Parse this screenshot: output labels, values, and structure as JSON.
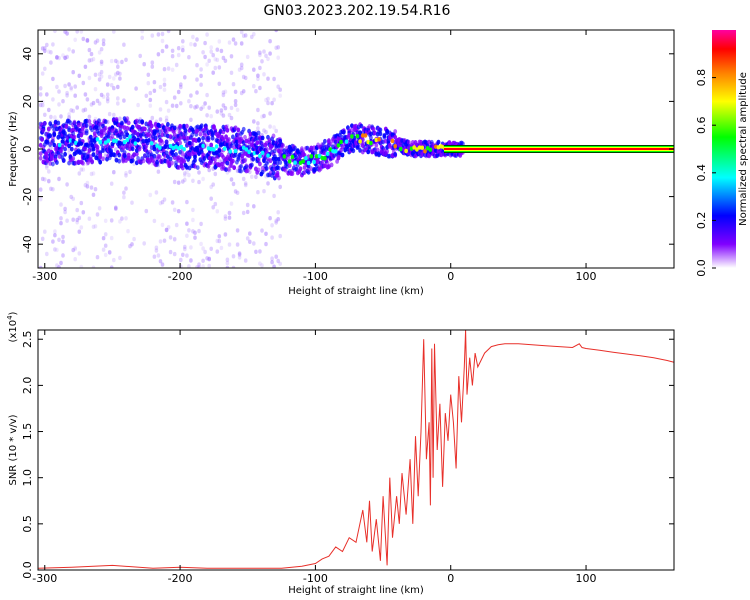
{
  "title": "GN03.2023.202.19.54.R16",
  "chart_data": [
    {
      "type": "heatmap",
      "xlabel": "Height of straight line (km)",
      "ylabel": "Frequency (Hz)",
      "xlim": [
        -305,
        165
      ],
      "ylim": [
        -50,
        50
      ],
      "xticks": [
        -300,
        -200,
        -100,
        0,
        100
      ],
      "yticks": [
        -40,
        -20,
        0,
        20,
        40
      ],
      "colorbar": {
        "label": "Normalized spectral amplitude",
        "range": [
          0.0,
          1.0
        ],
        "ticks": [
          "0.0",
          "0.2",
          "0.4",
          "0.6",
          "0.8"
        ],
        "colors": [
          "#ffffff",
          "#8000ff",
          "#0000ff",
          "#00ffff",
          "#00ff00",
          "#ffff00",
          "#ff8000",
          "#ff0000",
          "#ff00a0"
        ]
      },
      "ridge_x": [
        -305,
        -280,
        -260,
        -240,
        -220,
        -200,
        -180,
        -160,
        -140,
        -125,
        -110,
        -100,
        -90,
        -80,
        -70,
        -60,
        -50,
        -40,
        -30,
        -20,
        -10,
        0,
        20,
        50,
        100,
        165
      ],
      "ridge_frequency": [
        2,
        3,
        3,
        4,
        2,
        1,
        1,
        0,
        -2,
        -4,
        -5,
        -4,
        -2,
        2,
        5,
        4,
        3,
        2,
        0,
        0,
        0,
        0,
        0,
        0,
        0,
        0
      ],
      "constant_line_frequency": 0,
      "constant_line_start_x": -5
    },
    {
      "type": "line",
      "xlabel": "Height of straight line (km)",
      "ylabel": "SNR (10 * v/v)",
      "yscale_label": "(x10",
      "yscale_exp": "4",
      "xlim": [
        -305,
        165
      ],
      "ylim": [
        0,
        2.6
      ],
      "xticks": [
        -300,
        -200,
        -100,
        0,
        100
      ],
      "yticks": [
        "0.0",
        "0.5",
        "1.0",
        "1.5",
        "2.0",
        "2.5"
      ],
      "color": "#e8302a",
      "x": [
        -305,
        -280,
        -250,
        -220,
        -200,
        -180,
        -150,
        -125,
        -110,
        -100,
        -95,
        -90,
        -85,
        -80,
        -75,
        -70,
        -65,
        -62,
        -60,
        -58,
        -55,
        -52,
        -50,
        -47,
        -45,
        -43,
        -40,
        -38,
        -36,
        -33,
        -30,
        -28,
        -26,
        -24,
        -22,
        -20,
        -18,
        -16,
        -15,
        -14,
        -13,
        -12,
        -10,
        -8,
        -6,
        -4,
        -2,
        0,
        2,
        4,
        6,
        8,
        10,
        11,
        12,
        14,
        16,
        18,
        20,
        25,
        30,
        35,
        40,
        50,
        60,
        70,
        80,
        90,
        95,
        97,
        100,
        110,
        120,
        130,
        140,
        150,
        160,
        165
      ],
      "y": [
        0.02,
        0.03,
        0.05,
        0.02,
        0.03,
        0.02,
        0.02,
        0.02,
        0.04,
        0.07,
        0.12,
        0.15,
        0.25,
        0.2,
        0.35,
        0.3,
        0.65,
        0.3,
        0.75,
        0.2,
        0.55,
        0.1,
        0.8,
        0.05,
        1.0,
        0.35,
        0.8,
        0.5,
        1.05,
        0.6,
        1.2,
        0.5,
        1.45,
        0.8,
        1.5,
        2.5,
        1.2,
        1.6,
        0.7,
        2.4,
        1.0,
        2.45,
        1.3,
        1.8,
        0.9,
        1.7,
        1.4,
        1.9,
        1.6,
        1.1,
        2.1,
        1.6,
        2.2,
        2.6,
        1.9,
        2.3,
        2.0,
        2.35,
        2.2,
        2.35,
        2.42,
        2.44,
        2.45,
        2.45,
        2.44,
        2.43,
        2.42,
        2.41,
        2.45,
        2.41,
        2.4,
        2.38,
        2.36,
        2.34,
        2.32,
        2.3,
        2.27,
        2.25
      ]
    }
  ]
}
